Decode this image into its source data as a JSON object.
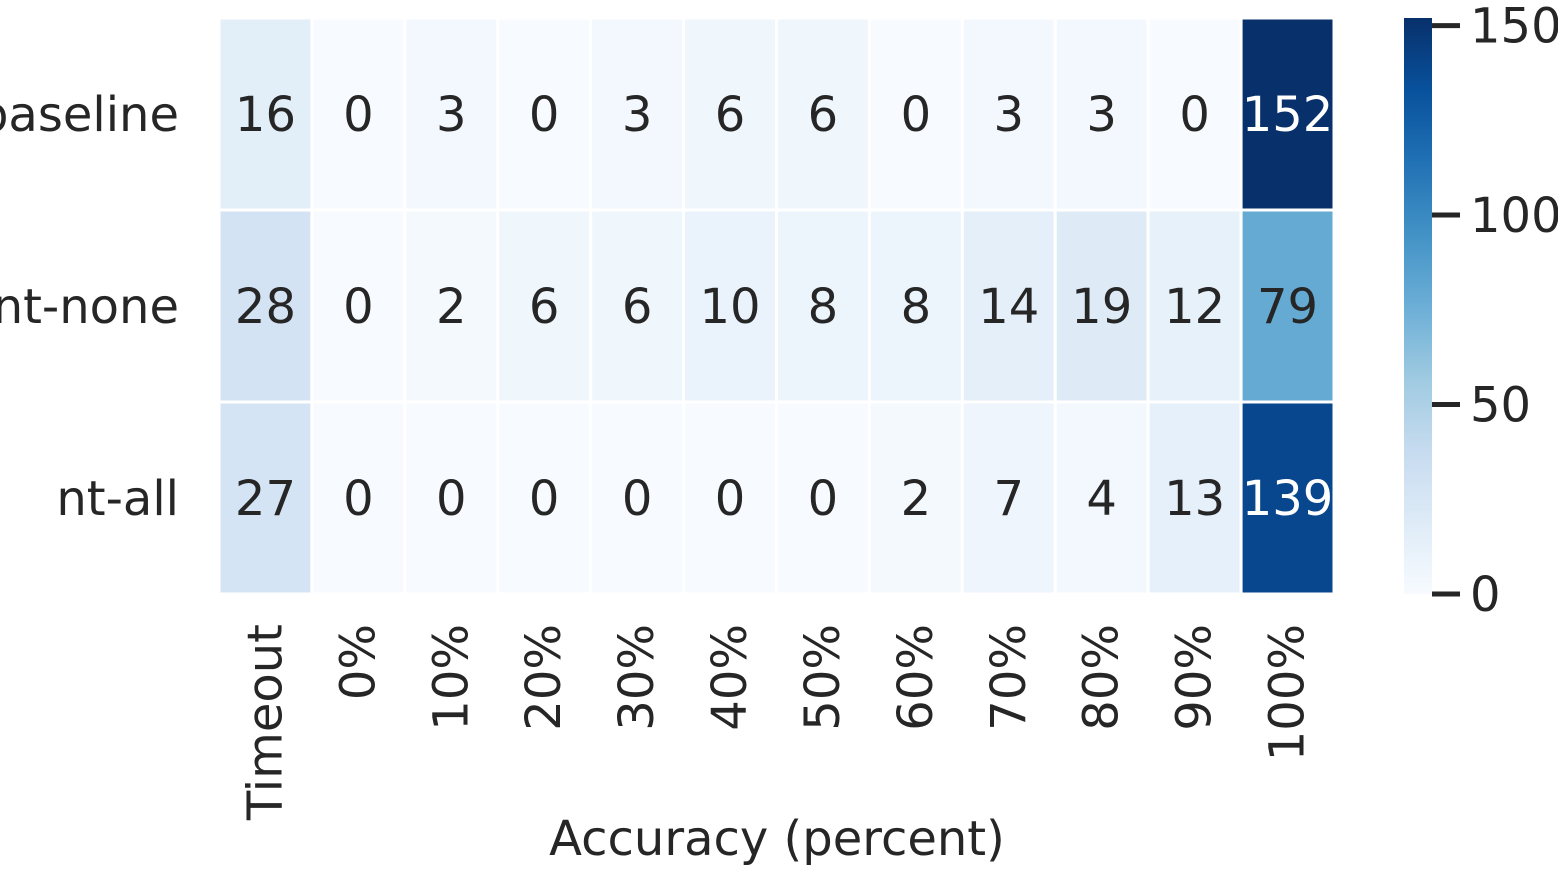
{
  "chart_data": {
    "type": "heatmap",
    "title": "",
    "xlabel": "Accuracy (percent)",
    "ylabel": "",
    "x_categories": [
      "Timeout",
      "0%",
      "10%",
      "20%",
      "30%",
      "40%",
      "50%",
      "60%",
      "70%",
      "80%",
      "90%",
      "100%"
    ],
    "y_categories": [
      "baseline",
      "nt-none",
      "nt-all"
    ],
    "values": [
      [
        16,
        0,
        3,
        0,
        3,
        6,
        6,
        0,
        3,
        3,
        0,
        152
      ],
      [
        28,
        0,
        2,
        6,
        6,
        10,
        8,
        8,
        14,
        19,
        12,
        79
      ],
      [
        27,
        0,
        0,
        0,
        0,
        0,
        0,
        2,
        7,
        4,
        13,
        139
      ]
    ],
    "annotated": true,
    "colormap": "Blues",
    "vmin": 0,
    "vmax": 152,
    "colorbar": {
      "ticks": [
        0,
        50,
        100,
        150
      ]
    },
    "grid": false
  }
}
